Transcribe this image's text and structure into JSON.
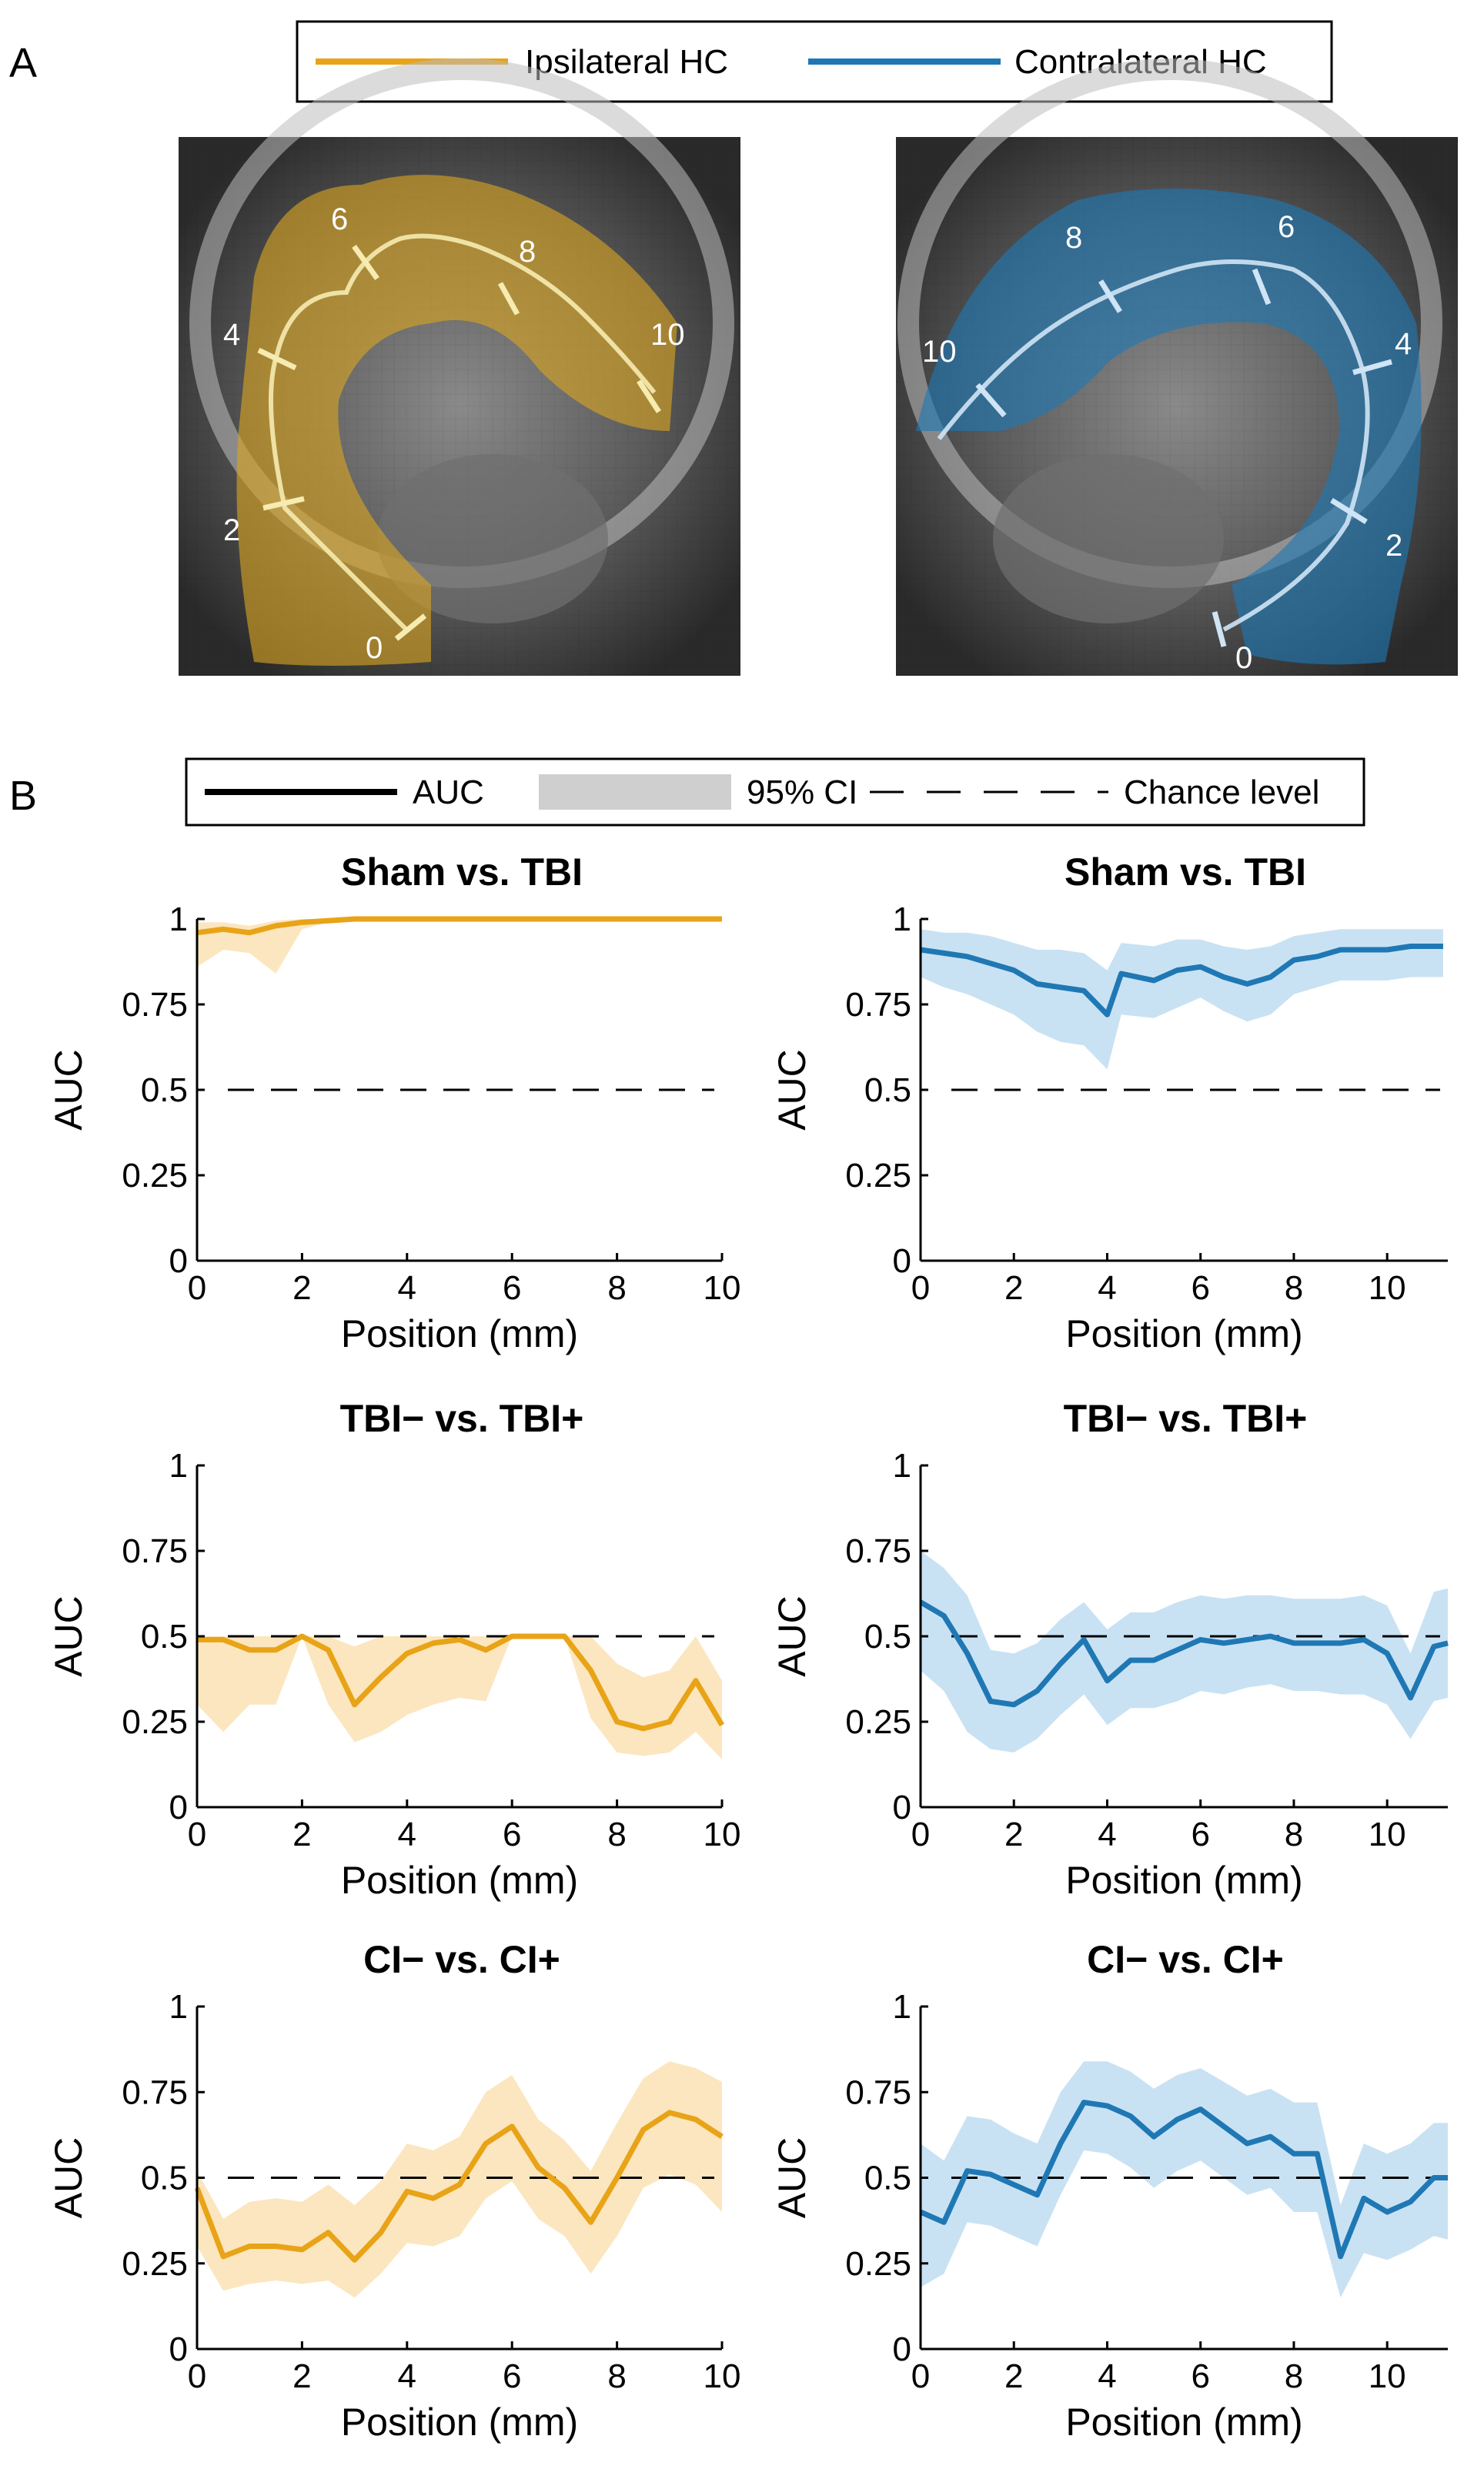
{
  "panel_a": {
    "letter": "A",
    "legend": [
      {
        "label": "Ipsilateral HC",
        "color": "#e8a317"
      },
      {
        "label": "Contralateral HC",
        "color": "#1f78b4"
      }
    ],
    "left_image": {
      "marker_labels": [
        "0",
        "2",
        "4",
        "6",
        "8",
        "10"
      ]
    },
    "right_image": {
      "marker_labels": [
        "0",
        "2",
        "4",
        "6",
        "8",
        "10"
      ]
    }
  },
  "panel_b": {
    "letter": "B",
    "legend": [
      {
        "label": "AUC",
        "style": "solid"
      },
      {
        "label": "95% CI",
        "style": "band"
      },
      {
        "label": "Chance level",
        "style": "dashed"
      }
    ]
  },
  "colors": {
    "ipsi": "#e8a317",
    "ipsi_band": "#fbe6bf",
    "contra": "#1f78b4",
    "contra_band": "#c9e2f3",
    "chance": "#000000"
  },
  "chart_data": [
    {
      "type": "line",
      "title": "Sham vs. TBI",
      "side": "ipsi",
      "xlabel": "Position (mm)",
      "ylabel": "AUC",
      "xlim": [
        0,
        10
      ],
      "ylim": [
        0,
        1
      ],
      "xticks": [
        "0",
        "2",
        "4",
        "6",
        "8",
        "10"
      ],
      "yticks": [
        "0",
        "0.25",
        "0.5",
        "0.75",
        "1"
      ],
      "chance_level": 0.5,
      "x": [
        0,
        0.5,
        1,
        1.5,
        2,
        2.5,
        3,
        3.5,
        4,
        5,
        6,
        7,
        8,
        9,
        10
      ],
      "values": [
        0.96,
        0.97,
        0.96,
        0.98,
        0.99,
        0.995,
        1,
        1,
        1,
        1,
        1,
        1,
        1,
        1,
        1
      ],
      "ci_low": [
        0.86,
        0.91,
        0.9,
        0.84,
        0.97,
        0.99,
        1,
        1,
        1,
        1,
        1,
        1,
        1,
        1,
        1
      ],
      "ci_high": [
        0.99,
        0.99,
        0.98,
        0.995,
        1,
        1,
        1,
        1,
        1,
        1,
        1,
        1,
        1,
        1,
        1
      ]
    },
    {
      "type": "line",
      "title": "Sham vs. TBI",
      "side": "contra",
      "xlabel": "Position (mm)",
      "ylabel": "AUC",
      "xlim": [
        0,
        11.3
      ],
      "ylim": [
        0,
        1
      ],
      "xticks": [
        "0",
        "2",
        "4",
        "6",
        "8",
        "10"
      ],
      "yticks": [
        "0",
        "0.25",
        "0.5",
        "0.75",
        "1"
      ],
      "chance_level": 0.5,
      "x": [
        0,
        0.5,
        1,
        1.5,
        2,
        2.5,
        3,
        3.5,
        4,
        4.3,
        5,
        5.5,
        6,
        6.5,
        7,
        7.5,
        8,
        8.5,
        9,
        9.5,
        10,
        10.5,
        11.2
      ],
      "values": [
        0.91,
        0.9,
        0.89,
        0.87,
        0.85,
        0.81,
        0.8,
        0.79,
        0.72,
        0.84,
        0.82,
        0.85,
        0.86,
        0.83,
        0.81,
        0.83,
        0.88,
        0.89,
        0.91,
        0.91,
        0.91,
        0.92,
        0.92
      ],
      "ci_low": [
        0.83,
        0.8,
        0.78,
        0.75,
        0.72,
        0.67,
        0.64,
        0.63,
        0.56,
        0.72,
        0.71,
        0.74,
        0.77,
        0.73,
        0.7,
        0.72,
        0.78,
        0.8,
        0.82,
        0.82,
        0.82,
        0.83,
        0.83
      ],
      "ci_high": [
        0.97,
        0.96,
        0.96,
        0.95,
        0.93,
        0.91,
        0.91,
        0.9,
        0.85,
        0.93,
        0.92,
        0.94,
        0.94,
        0.92,
        0.91,
        0.92,
        0.95,
        0.96,
        0.97,
        0.97,
        0.97,
        0.97,
        0.97
      ]
    },
    {
      "type": "line",
      "title": "TBI− vs. TBI+",
      "side": "ipsi",
      "xlabel": "Position (mm)",
      "ylabel": "AUC",
      "xlim": [
        0,
        10
      ],
      "ylim": [
        0,
        1
      ],
      "xticks": [
        "0",
        "2",
        "4",
        "6",
        "8",
        "10"
      ],
      "yticks": [
        "0",
        "0.25",
        "0.5",
        "0.75",
        "1"
      ],
      "chance_level": 0.5,
      "x": [
        0,
        0.5,
        1,
        1.5,
        2,
        2.5,
        3,
        3.5,
        4,
        4.5,
        5,
        5.5,
        6,
        6.5,
        7,
        7.5,
        8,
        8.5,
        9,
        9.5,
        10
      ],
      "values": [
        0.49,
        0.49,
        0.46,
        0.46,
        0.5,
        0.46,
        0.3,
        0.38,
        0.45,
        0.48,
        0.49,
        0.46,
        0.5,
        0.5,
        0.5,
        0.4,
        0.25,
        0.23,
        0.25,
        0.37,
        0.24
      ],
      "ci_low": [
        0.3,
        0.22,
        0.3,
        0.3,
        0.5,
        0.3,
        0.19,
        0.22,
        0.27,
        0.3,
        0.32,
        0.31,
        0.5,
        0.5,
        0.5,
        0.26,
        0.16,
        0.15,
        0.16,
        0.22,
        0.14
      ],
      "ci_high": [
        0.5,
        0.5,
        0.5,
        0.5,
        0.5,
        0.5,
        0.47,
        0.5,
        0.5,
        0.5,
        0.5,
        0.5,
        0.5,
        0.5,
        0.5,
        0.5,
        0.42,
        0.38,
        0.4,
        0.5,
        0.37
      ]
    },
    {
      "type": "line",
      "title": "TBI− vs. TBI+",
      "side": "contra",
      "xlabel": "Position (mm)",
      "ylabel": "AUC",
      "xlim": [
        0,
        11.3
      ],
      "ylim": [
        0,
        1
      ],
      "xticks": [
        "0",
        "2",
        "4",
        "6",
        "8",
        "10"
      ],
      "yticks": [
        "0",
        "0.25",
        "0.5",
        "0.75",
        "1"
      ],
      "chance_level": 0.5,
      "x": [
        0,
        0.5,
        1,
        1.5,
        2,
        2.5,
        3,
        3.5,
        4,
        4.5,
        5,
        5.5,
        6,
        6.5,
        7,
        7.5,
        8,
        8.5,
        9,
        9.5,
        10,
        10.5,
        11,
        11.3
      ],
      "values": [
        0.6,
        0.56,
        0.45,
        0.31,
        0.3,
        0.34,
        0.42,
        0.49,
        0.37,
        0.43,
        0.43,
        0.46,
        0.49,
        0.48,
        0.49,
        0.5,
        0.48,
        0.48,
        0.48,
        0.49,
        0.45,
        0.32,
        0.47,
        0.48
      ],
      "ci_low": [
        0.4,
        0.34,
        0.22,
        0.17,
        0.16,
        0.2,
        0.27,
        0.33,
        0.24,
        0.29,
        0.29,
        0.31,
        0.34,
        0.33,
        0.35,
        0.36,
        0.34,
        0.34,
        0.33,
        0.33,
        0.3,
        0.2,
        0.31,
        0.32
      ],
      "ci_high": [
        0.75,
        0.7,
        0.62,
        0.46,
        0.45,
        0.48,
        0.55,
        0.6,
        0.52,
        0.57,
        0.57,
        0.6,
        0.62,
        0.61,
        0.62,
        0.62,
        0.61,
        0.61,
        0.61,
        0.62,
        0.59,
        0.45,
        0.63,
        0.64
      ]
    },
    {
      "type": "line",
      "title": "CI− vs. CI+",
      "side": "ipsi",
      "xlabel": "Position (mm)",
      "ylabel": "AUC",
      "xlim": [
        0,
        10
      ],
      "ylim": [
        0,
        1
      ],
      "xticks": [
        "0",
        "2",
        "4",
        "6",
        "8",
        "10"
      ],
      "yticks": [
        "0",
        "0.25",
        "0.5",
        "0.75",
        "1"
      ],
      "chance_level": 0.5,
      "x": [
        0,
        0.5,
        1,
        1.5,
        2,
        2.5,
        3,
        3.5,
        4,
        4.5,
        5,
        5.5,
        6,
        6.5,
        7,
        7.5,
        8,
        8.5,
        9,
        9.5,
        10
      ],
      "values": [
        0.47,
        0.27,
        0.3,
        0.3,
        0.29,
        0.34,
        0.26,
        0.34,
        0.46,
        0.44,
        0.48,
        0.6,
        0.65,
        0.53,
        0.47,
        0.37,
        0.5,
        0.64,
        0.69,
        0.67,
        0.62
      ],
      "ci_low": [
        0.3,
        0.17,
        0.19,
        0.2,
        0.19,
        0.2,
        0.15,
        0.22,
        0.31,
        0.3,
        0.33,
        0.44,
        0.49,
        0.38,
        0.33,
        0.22,
        0.33,
        0.47,
        0.51,
        0.48,
        0.4
      ],
      "ci_high": [
        0.52,
        0.38,
        0.43,
        0.44,
        0.43,
        0.48,
        0.42,
        0.49,
        0.6,
        0.58,
        0.62,
        0.75,
        0.8,
        0.67,
        0.61,
        0.52,
        0.66,
        0.79,
        0.84,
        0.82,
        0.78
      ]
    },
    {
      "type": "line",
      "title": "CI− vs. CI+",
      "side": "contra",
      "xlabel": "Position (mm)",
      "ylabel": "AUC",
      "xlim": [
        0,
        11.3
      ],
      "ylim": [
        0,
        1
      ],
      "xticks": [
        "0",
        "2",
        "4",
        "6",
        "8",
        "10"
      ],
      "yticks": [
        "0",
        "0.25",
        "0.5",
        "0.75",
        "1"
      ],
      "chance_level": 0.5,
      "x": [
        0,
        0.5,
        1,
        1.5,
        2,
        2.5,
        3,
        3.5,
        4,
        4.5,
        5,
        5.5,
        6,
        6.5,
        7,
        7.5,
        8,
        8.5,
        9,
        9.5,
        10,
        10.5,
        11,
        11.3
      ],
      "values": [
        0.4,
        0.37,
        0.52,
        0.51,
        0.48,
        0.45,
        0.6,
        0.72,
        0.71,
        0.68,
        0.62,
        0.67,
        0.7,
        0.65,
        0.6,
        0.62,
        0.57,
        0.57,
        0.27,
        0.44,
        0.4,
        0.43,
        0.5,
        0.5
      ],
      "ci_low": [
        0.18,
        0.22,
        0.37,
        0.36,
        0.33,
        0.3,
        0.45,
        0.58,
        0.57,
        0.53,
        0.47,
        0.52,
        0.55,
        0.5,
        0.45,
        0.47,
        0.4,
        0.4,
        0.15,
        0.28,
        0.26,
        0.29,
        0.33,
        0.32
      ],
      "ci_high": [
        0.6,
        0.55,
        0.68,
        0.67,
        0.63,
        0.6,
        0.75,
        0.84,
        0.84,
        0.81,
        0.76,
        0.8,
        0.82,
        0.78,
        0.74,
        0.76,
        0.72,
        0.72,
        0.42,
        0.6,
        0.57,
        0.6,
        0.66,
        0.66
      ]
    }
  ]
}
